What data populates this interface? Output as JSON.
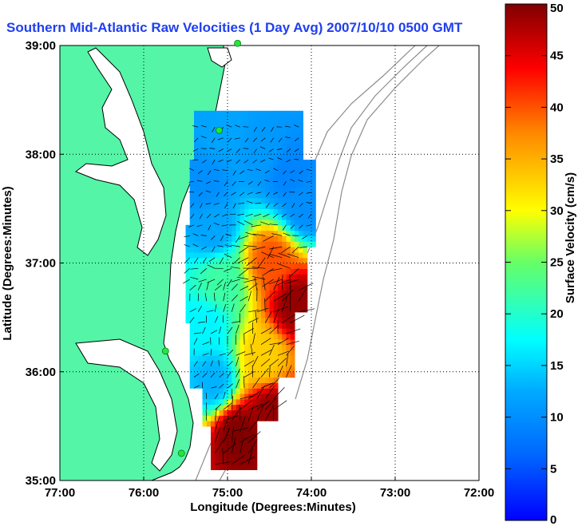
{
  "chart_data": {
    "type": "heatmap",
    "title": "Southern Mid-Atlantic Raw Velocities (1 Day Avg) 2007/10/10 0500 GMT",
    "xlabel": "Longitude (Degrees:Minutes)",
    "ylabel": "Latitude (Degrees:Minutes)",
    "xlim": [
      -77,
      -72
    ],
    "ylim": [
      35,
      39
    ],
    "x_ticks": [
      {
        "value": -77,
        "label": "77:00"
      },
      {
        "value": -76,
        "label": "76:00"
      },
      {
        "value": -75,
        "label": "75:00"
      },
      {
        "value": -74,
        "label": "74:00"
      },
      {
        "value": -73,
        "label": "73:00"
      },
      {
        "value": -72,
        "label": "72:00"
      }
    ],
    "y_ticks": [
      {
        "value": 35,
        "label": "35:00"
      },
      {
        "value": 36,
        "label": "36:00"
      },
      {
        "value": 37,
        "label": "37:00"
      },
      {
        "value": 38,
        "label": "38:00"
      },
      {
        "value": 39,
        "label": "39:00"
      }
    ],
    "grid": true,
    "colorbar": {
      "label": "Surface Velocity (cm/s)",
      "min": 0,
      "max": 50,
      "ticks": [
        0,
        5,
        10,
        15,
        20,
        25,
        30,
        35,
        40,
        45,
        50
      ],
      "colormap": "jet"
    },
    "colors": {
      "land": "#54f5a6",
      "coast": "#000000",
      "bathymetry": "#8c8c8c",
      "vectors": "#000000",
      "stations": "#21e83a"
    },
    "stations": [
      {
        "lon": -74.88,
        "lat": 39.02
      },
      {
        "lon": -75.1,
        "lat": 38.22
      },
      {
        "lon": -75.74,
        "lat": 36.19
      },
      {
        "lon": -75.55,
        "lat": 35.25
      }
    ],
    "velocity_field": [
      {
        "lon": -75.1,
        "lat": 38.2,
        "speed": 12
      },
      {
        "lon": -74.6,
        "lat": 38.0,
        "speed": 11
      },
      {
        "lon": -74.3,
        "lat": 37.8,
        "speed": 9
      },
      {
        "lon": -75.3,
        "lat": 37.7,
        "speed": 10
      },
      {
        "lon": -74.1,
        "lat": 37.5,
        "speed": 10
      },
      {
        "lon": -75.2,
        "lat": 37.3,
        "speed": 12
      },
      {
        "lon": -74.5,
        "lat": 37.0,
        "speed": 40
      },
      {
        "lon": -75.1,
        "lat": 36.8,
        "speed": 22
      },
      {
        "lon": -74.2,
        "lat": 36.6,
        "speed": 49
      },
      {
        "lon": -75.3,
        "lat": 36.4,
        "speed": 17
      },
      {
        "lon": -74.6,
        "lat": 36.1,
        "speed": 33
      },
      {
        "lon": -75.2,
        "lat": 35.9,
        "speed": 13
      },
      {
        "lon": -74.5,
        "lat": 35.6,
        "speed": 49
      },
      {
        "lon": -74.9,
        "lat": 35.4,
        "speed": 50
      }
    ]
  }
}
